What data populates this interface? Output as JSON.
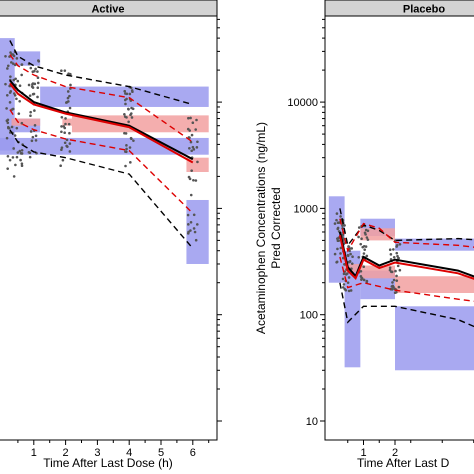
{
  "chart_data": [
    {
      "type": "line",
      "title": "Active",
      "xlabel": "Time After Last Dose (h)",
      "ylabel": "",
      "x_ticks": [
        "1",
        "2",
        "3",
        "4",
        "5",
        "6"
      ],
      "log_y": true,
      "ylim": [
        10,
        50000
      ],
      "xlim": [
        -0.1,
        6.6
      ],
      "grid": false,
      "series": [
        {
          "role": "observed-median",
          "color": "#000000",
          "style": "solid",
          "x": [
            0.25,
            0.5,
            1,
            2,
            4,
            6
          ],
          "y": [
            16000,
            13000,
            10000,
            8000,
            6000,
            2900
          ]
        },
        {
          "role": "predicted-median",
          "color": "#dd0000",
          "style": "solid",
          "x": [
            0.25,
            0.5,
            1,
            2,
            4,
            6
          ],
          "y": [
            15000,
            12000,
            9500,
            7800,
            5800,
            2700
          ]
        },
        {
          "role": "observed-upper-percentile",
          "color": "#000000",
          "style": "dashed",
          "x": [
            0.25,
            0.5,
            1,
            2,
            4,
            6
          ],
          "y": [
            38000,
            27000,
            22000,
            18000,
            14000,
            9500
          ]
        },
        {
          "role": "observed-lower-percentile",
          "color": "#000000",
          "style": "dashed",
          "x": [
            0.25,
            0.5,
            1,
            2,
            4,
            6
          ],
          "y": [
            5500,
            4200,
            3400,
            3000,
            2100,
            420
          ]
        },
        {
          "role": "predicted-upper-percentile",
          "color": "#dd0000",
          "style": "dashed",
          "x": [
            0.25,
            0.5,
            1,
            2,
            4,
            6
          ],
          "y": [
            28000,
            22000,
            18000,
            14000,
            11000,
            4200
          ]
        },
        {
          "role": "predicted-lower-percentile",
          "color": "#dd0000",
          "style": "dashed",
          "x": [
            0.25,
            0.5,
            1,
            2,
            4,
            6
          ],
          "y": [
            8500,
            6500,
            5500,
            4500,
            3500,
            900
          ]
        }
      ],
      "bands": [
        {
          "color": "#9a9aee",
          "x": [
            -0.1,
            0.4
          ],
          "y": [
            3500,
            40000
          ]
        },
        {
          "color": "#9a9aee",
          "x": [
            0.3,
            1.2
          ],
          "y": [
            22000,
            30000
          ]
        },
        {
          "color": "#9a9aee",
          "x": [
            1.2,
            6.5
          ],
          "y": [
            9000,
            14000
          ]
        },
        {
          "color": "#9a9aee",
          "x": [
            -0.1,
            6.5
          ],
          "y": [
            3200,
            4600
          ]
        },
        {
          "color": "#9a9aee",
          "x": [
            0.3,
            1.2
          ],
          "y": [
            5200,
            7000
          ]
        },
        {
          "color": "#9a9aee",
          "x": [
            5.8,
            6.5
          ],
          "y": [
            300,
            1200
          ]
        },
        {
          "color": "#f2a0a0",
          "x": [
            0.3,
            1.2
          ],
          "y": [
            6000,
            7000
          ]
        },
        {
          "color": "#f2a0a0",
          "x": [
            1.9,
            2.2
          ],
          "y": [
            6000,
            7000
          ]
        },
        {
          "color": "#f2a0a0",
          "x": [
            2.2,
            6.5
          ],
          "y": [
            5200,
            7500
          ]
        },
        {
          "color": "#f2a0a0",
          "x": [
            5.8,
            6.5
          ],
          "y": [
            2200,
            3000
          ]
        }
      ],
      "points": {
        "color": "#555555",
        "clusters": [
          {
            "x": 0.25,
            "y_min": 2000,
            "y_max": 35000
          },
          {
            "x": 0.5,
            "y_min": 2500,
            "y_max": 30000
          },
          {
            "x": 1.0,
            "y_min": 2800,
            "y_max": 25000
          },
          {
            "x": 2.0,
            "y_min": 2500,
            "y_max": 20000
          },
          {
            "x": 4.0,
            "y_min": 2500,
            "y_max": 15000
          },
          {
            "x": 6.0,
            "y_min": 500,
            "y_max": 8000
          }
        ]
      }
    },
    {
      "type": "line",
      "title": "Placebo",
      "xlabel": "Time After Last D",
      "ylabel": "Acetaminophen Concentrations (ng/mL)\nPred Corrected",
      "x_ticks": [
        "1",
        "2"
      ],
      "y_ticks": [
        "10",
        "100",
        "1000",
        "10000"
      ],
      "log_y": true,
      "ylim": [
        10,
        50000
      ],
      "xlim": [
        -0.1,
        6.6
      ],
      "grid": false,
      "series": [
        {
          "role": "observed-median",
          "color": "#000000",
          "style": "solid",
          "x": [
            0.25,
            0.5,
            0.75,
            1,
            1.5,
            2,
            4,
            6
          ],
          "y": [
            600,
            280,
            230,
            350,
            290,
            330,
            260,
            210
          ]
        },
        {
          "role": "predicted-median",
          "color": "#dd0000",
          "style": "solid",
          "x": [
            0.25,
            0.5,
            0.75,
            1,
            1.5,
            2,
            4,
            6
          ],
          "y": [
            560,
            260,
            220,
            330,
            275,
            310,
            245,
            200
          ]
        },
        {
          "role": "observed-upper-percentile",
          "color": "#000000",
          "style": "dashed",
          "x": [
            0.25,
            0.5,
            1,
            1.5,
            2,
            4,
            6
          ],
          "y": [
            1000,
            450,
            700,
            620,
            500,
            520,
            500
          ]
        },
        {
          "role": "observed-lower-percentile",
          "color": "#000000",
          "style": "dashed",
          "x": [
            0.25,
            0.5,
            1,
            2,
            4,
            6
          ],
          "y": [
            200,
            85,
            120,
            120,
            90,
            70
          ]
        },
        {
          "role": "predicted-upper-percentile",
          "color": "#dd0000",
          "style": "dashed",
          "x": [
            0.25,
            0.5,
            1,
            1.5,
            2,
            4,
            6
          ],
          "y": [
            800,
            400,
            720,
            650,
            480,
            450,
            420
          ]
        },
        {
          "role": "predicted-lower-percentile",
          "color": "#dd0000",
          "style": "dashed",
          "x": [
            0.25,
            0.5,
            1,
            2,
            4,
            6
          ],
          "y": [
            350,
            180,
            200,
            170,
            140,
            130
          ]
        }
      ],
      "bands": [
        {
          "color": "#9a9aee",
          "x": [
            -0.1,
            0.4
          ],
          "y": [
            200,
            1300
          ]
        },
        {
          "color": "#9a9aee",
          "x": [
            0.4,
            0.9
          ],
          "y": [
            32,
            400
          ]
        },
        {
          "color": "#9a9aee",
          "x": [
            0.9,
            2.0
          ],
          "y": [
            550,
            800
          ]
        },
        {
          "color": "#9a9aee",
          "x": [
            2.0,
            6.6
          ],
          "y": [
            400,
            520
          ]
        },
        {
          "color": "#9a9aee",
          "x": [
            0.9,
            2.0
          ],
          "y": [
            140,
            260
          ]
        },
        {
          "color": "#9a9aee",
          "x": [
            2.0,
            6.6
          ],
          "y": [
            30,
            120
          ]
        },
        {
          "color": "#f2a0a0",
          "x": [
            0.4,
            0.9
          ],
          "y": [
            250,
            300
          ]
        },
        {
          "color": "#f2a0a0",
          "x": [
            0.9,
            2.0
          ],
          "y": [
            220,
            290
          ]
        },
        {
          "color": "#f2a0a0",
          "x": [
            2.0,
            6.6
          ],
          "y": [
            160,
            230
          ]
        },
        {
          "color": "#f2a0a0",
          "x": [
            0.9,
            2.0
          ],
          "y": [
            500,
            650
          ]
        }
      ],
      "points": {
        "color": "#555555",
        "clusters": [
          {
            "x": 0.25,
            "y_min": 300,
            "y_max": 900
          },
          {
            "x": 0.5,
            "y_min": 150,
            "y_max": 500
          },
          {
            "x": 1.0,
            "y_min": 200,
            "y_max": 700
          },
          {
            "x": 2.0,
            "y_min": 150,
            "y_max": 500
          }
        ]
      }
    }
  ]
}
